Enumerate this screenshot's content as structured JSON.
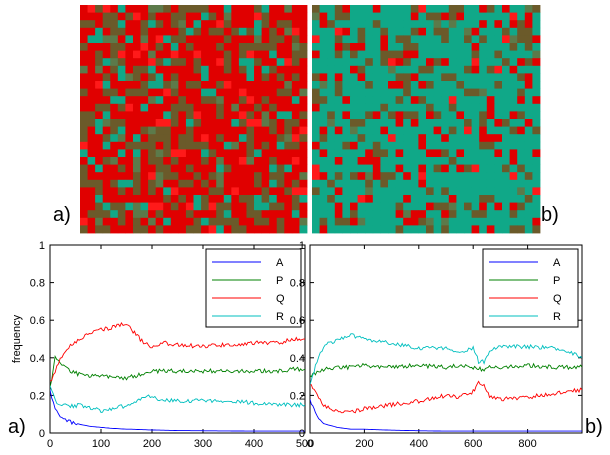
{
  "panel_labels": {
    "top_left": "a)",
    "top_right": "b)",
    "bottom_left": "a)",
    "bottom_right": "b)"
  },
  "lattice_colors": {
    "A": "#1a1aa8",
    "P": "#6b5a2a",
    "Q": "#e00000",
    "R": "#10a888"
  },
  "chart_data": [
    {
      "type": "line",
      "ylabel": "frequency",
      "xlabel": "",
      "title": "",
      "xlim": [
        0,
        500
      ],
      "ylim": [
        0,
        1
      ],
      "xticks": [
        0,
        100,
        200,
        300,
        400,
        500
      ],
      "yticks": [
        0,
        0.2,
        0.4,
        0.6,
        0.8,
        1
      ],
      "ytick_labels": [
        "0",
        "0.2",
        "0.4",
        "0.6",
        "0.8",
        "1"
      ],
      "legend": "top-right",
      "x": [
        0,
        10,
        20,
        30,
        40,
        60,
        80,
        100,
        120,
        140,
        150,
        160,
        180,
        190,
        200,
        220,
        250,
        300,
        350,
        400,
        450,
        480,
        500
      ],
      "series": [
        {
          "name": "A",
          "color": "#0000ff",
          "values": [
            0.23,
            0.12,
            0.09,
            0.07,
            0.06,
            0.045,
            0.035,
            0.03,
            0.025,
            0.022,
            0.02,
            0.02,
            0.018,
            0.017,
            0.016,
            0.015,
            0.013,
            0.012,
            0.011,
            0.01,
            0.01,
            0.01,
            0.01
          ]
        },
        {
          "name": "P",
          "color": "#008000",
          "values": [
            0.24,
            0.4,
            0.38,
            0.35,
            0.33,
            0.31,
            0.3,
            0.31,
            0.3,
            0.29,
            0.29,
            0.3,
            0.31,
            0.32,
            0.33,
            0.33,
            0.33,
            0.33,
            0.33,
            0.33,
            0.33,
            0.34,
            0.34
          ]
        },
        {
          "name": "Q",
          "color": "#ff0000",
          "values": [
            0.27,
            0.32,
            0.4,
            0.43,
            0.47,
            0.5,
            0.53,
            0.55,
            0.56,
            0.58,
            0.58,
            0.55,
            0.49,
            0.47,
            0.46,
            0.48,
            0.47,
            0.46,
            0.47,
            0.48,
            0.48,
            0.5,
            0.5
          ]
        },
        {
          "name": "R",
          "color": "#00bfbf",
          "values": [
            0.26,
            0.17,
            0.15,
            0.15,
            0.14,
            0.15,
            0.13,
            0.12,
            0.13,
            0.14,
            0.14,
            0.15,
            0.19,
            0.2,
            0.19,
            0.18,
            0.17,
            0.17,
            0.17,
            0.16,
            0.15,
            0.15,
            0.15
          ]
        }
      ]
    },
    {
      "type": "line",
      "ylabel": "",
      "xlabel": "",
      "title": "",
      "xlim": [
        0,
        1000
      ],
      "ylim": [
        0,
        1
      ],
      "xticks": [
        0,
        200,
        400,
        600,
        800
      ],
      "yticks": [
        0,
        0.2,
        0.4,
        0.6,
        0.8,
        1
      ],
      "ytick_labels": [
        "0",
        "0.2",
        "0.4",
        "0.6",
        "0.8",
        "1"
      ],
      "legend": "top-right",
      "x": [
        0,
        20,
        50,
        100,
        150,
        200,
        300,
        400,
        500,
        550,
        600,
        620,
        640,
        660,
        700,
        800,
        900,
        950,
        1000
      ],
      "series": [
        {
          "name": "A",
          "color": "#0000ff",
          "values": [
            0.18,
            0.1,
            0.05,
            0.03,
            0.02,
            0.02,
            0.015,
            0.012,
            0.01,
            0.01,
            0.01,
            0.01,
            0.01,
            0.01,
            0.01,
            0.01,
            0.01,
            0.01,
            0.01
          ]
        },
        {
          "name": "P",
          "color": "#008000",
          "values": [
            0.3,
            0.32,
            0.34,
            0.35,
            0.35,
            0.36,
            0.35,
            0.36,
            0.35,
            0.36,
            0.35,
            0.34,
            0.34,
            0.35,
            0.35,
            0.36,
            0.35,
            0.35,
            0.35
          ]
        },
        {
          "name": "Q",
          "color": "#ff0000",
          "values": [
            0.27,
            0.22,
            0.15,
            0.11,
            0.11,
            0.13,
            0.15,
            0.17,
            0.2,
            0.19,
            0.22,
            0.27,
            0.26,
            0.2,
            0.18,
            0.19,
            0.21,
            0.22,
            0.23
          ]
        },
        {
          "name": "R",
          "color": "#00bfbf",
          "values": [
            0.25,
            0.36,
            0.46,
            0.5,
            0.52,
            0.5,
            0.48,
            0.45,
            0.45,
            0.43,
            0.45,
            0.38,
            0.38,
            0.44,
            0.46,
            0.46,
            0.45,
            0.43,
            0.4
          ]
        }
      ]
    }
  ]
}
